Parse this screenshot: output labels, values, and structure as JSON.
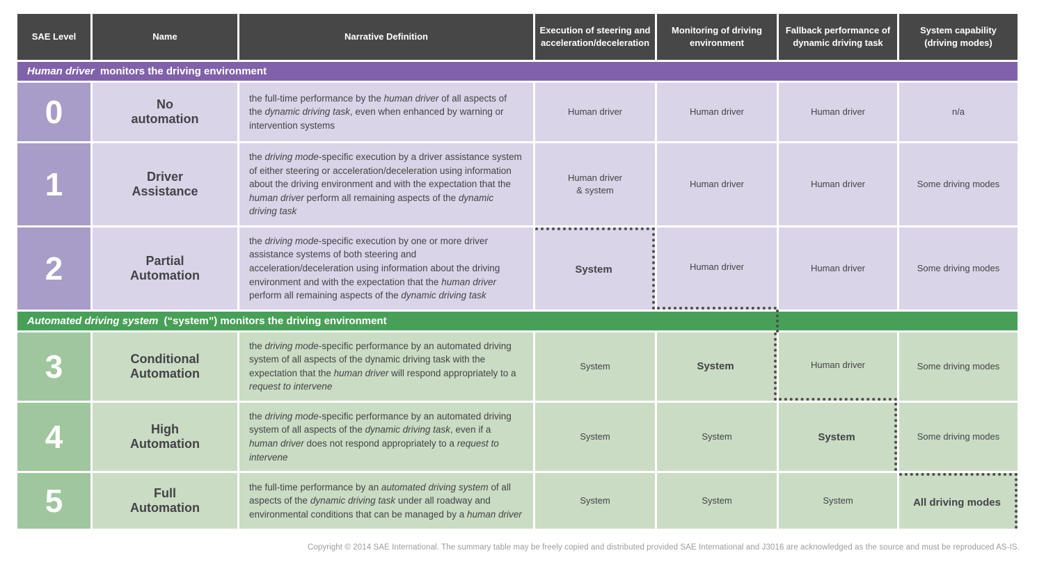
{
  "colors": {
    "header_bg": "#474747",
    "purple_band": "#8161aa",
    "purple_level": "#a89cc8",
    "purple_cell": "#d9d4e7",
    "green_band": "#48a058",
    "green_level": "#a0c69e",
    "green_cell": "#cadcc4",
    "text_dark": "#434347",
    "dot": "#4d4d4d",
    "copyright": "#9b9b9b"
  },
  "header": {
    "columns": [
      "SAE Level",
      "Name",
      "Narrative Definition",
      "Execution of steering and\nacceleration/deceleration",
      "Monitoring of driving\nenvironment",
      "Fallback performance of\ndynamic driving task",
      "System capability\n(driving modes)"
    ]
  },
  "sections": [
    {
      "band": [
        {
          "t": "Human driver",
          "i": 1
        },
        {
          "t": " monitors the driving environment"
        }
      ],
      "rows": [
        {
          "level": "0",
          "name": "No\nautomation",
          "narrative": [
            {
              "t": "the full-time performance by the "
            },
            {
              "t": "human driver",
              "i": 1
            },
            {
              "t": " of all aspects of the "
            },
            {
              "t": "dynamic driving task",
              "i": 1
            },
            {
              "t": ", even when enhanced by warning or intervention systems"
            }
          ],
          "cells": [
            "Human driver",
            "Human driver",
            "Human driver",
            "n/a"
          ]
        },
        {
          "level": "1",
          "name": "Driver\nAssistance",
          "narrative": [
            {
              "t": "the "
            },
            {
              "t": "driving mode",
              "i": 1
            },
            {
              "t": "-specific execution by a driver assistance system of either steering or acceleration/deceleration using information about the driving environment and with the expectation that the "
            },
            {
              "t": "human driver",
              "i": 1
            },
            {
              "t": " perform all remaining aspects of the "
            },
            {
              "t": "dynamic driving task",
              "i": 1
            }
          ],
          "cells": [
            "Human driver\n& system",
            "Human driver",
            "Human driver",
            "Some driving modes"
          ]
        },
        {
          "level": "2",
          "name": "Partial\nAutomation",
          "narrative": [
            {
              "t": "the "
            },
            {
              "t": "driving mode",
              "i": 1
            },
            {
              "t": "-specific execution by one or more driver assistance systems of both steering and acceleration/deceleration using information about the driving environment and with the expectation that the "
            },
            {
              "t": "human driver",
              "i": 1
            },
            {
              "t": " perform all remaining aspects of the "
            },
            {
              "t": "dynamic driving task",
              "i": 1
            }
          ],
          "cells": [
            "System",
            "Human driver",
            "Human driver",
            "Some driving modes"
          ]
        }
      ]
    },
    {
      "band": [
        {
          "t": "Automated driving system",
          "i": 1
        },
        {
          "t": " (“system”) monitors the driving environment"
        }
      ],
      "rows": [
        {
          "level": "3",
          "name": "Conditional\nAutomation",
          "narrative": [
            {
              "t": "the "
            },
            {
              "t": "driving mode",
              "i": 1
            },
            {
              "t": "-specific performance by an automated driving system of all aspects of the dynamic driving task with the expectation that the "
            },
            {
              "t": "human driver",
              "i": 1
            },
            {
              "t": " will respond appropriately to a "
            },
            {
              "t": "request to intervene",
              "i": 1
            }
          ],
          "cells": [
            "System",
            "System",
            "Human driver",
            "Some driving modes"
          ]
        },
        {
          "level": "4",
          "name": "High\nAutomation",
          "narrative": [
            {
              "t": "the "
            },
            {
              "t": "driving mode",
              "i": 1
            },
            {
              "t": "-specific performance by an automated driving system of all aspects of the "
            },
            {
              "t": "dynamic driving task",
              "i": 1
            },
            {
              "t": ", even if a "
            },
            {
              "t": "human driver",
              "i": 1
            },
            {
              "t": " does not respond appropriately to a "
            },
            {
              "t": "request to intervene",
              "i": 1
            }
          ],
          "cells": [
            "System",
            "System",
            "System",
            "Some driving modes"
          ]
        },
        {
          "level": "5",
          "name": "Full\nAutomation",
          "narrative": [
            {
              "t": "the full-time performance by an "
            },
            {
              "t": "automated driving system",
              "i": 1
            },
            {
              "t": " of all aspects of the "
            },
            {
              "t": "dynamic driving task",
              "i": 1
            },
            {
              "t": " under all roadway and environmental conditions that can be managed by a "
            },
            {
              "t": "human driver",
              "i": 1
            }
          ],
          "cells": [
            "System",
            "System",
            "System",
            "All driving modes"
          ]
        }
      ]
    }
  ],
  "copyright": "Copyright © 2014 SAE International. The summary table may be freely copied and distributed provided SAE International and J3016 are acknowledged as the source and must be reproduced AS-IS."
}
